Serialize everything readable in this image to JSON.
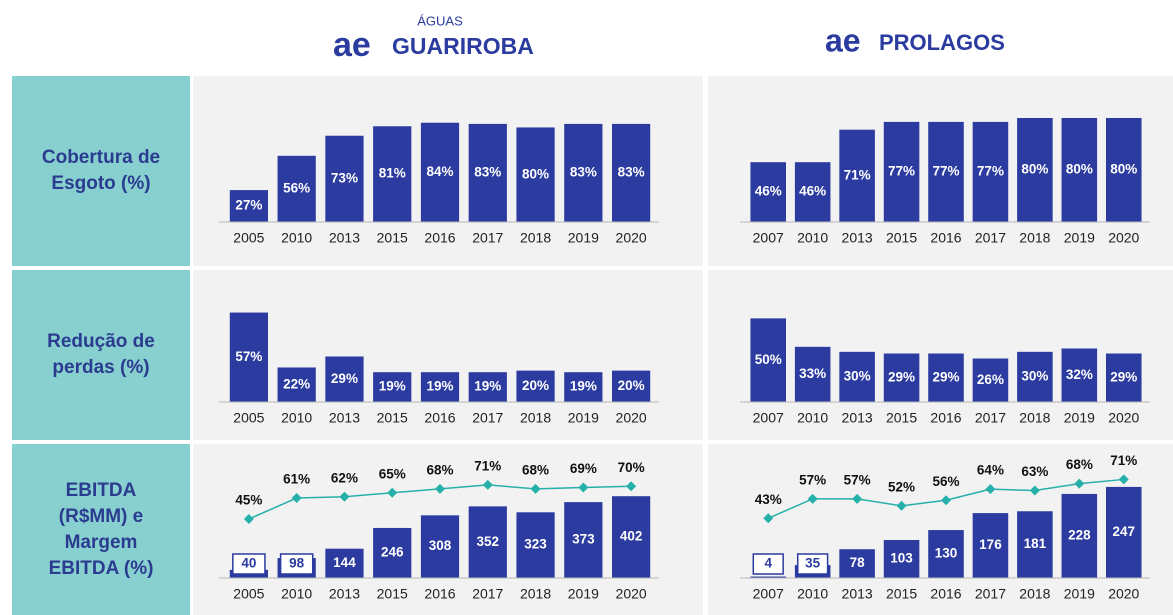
{
  "header": {
    "brands": [
      {
        "sub": "ÁGUAS",
        "logo": "ae",
        "name": "GUARIROBA"
      },
      {
        "logo": "ae",
        "name": "PROLAGOS"
      }
    ]
  },
  "rows": [
    {
      "label": [
        "Cobertura de",
        "Esgoto (%)"
      ]
    },
    {
      "label": [
        "Redução de",
        "perdas (%)"
      ]
    },
    {
      "label": [
        "EBITDA",
        "(R$MM) e",
        "Margem",
        "EBITDA (%)"
      ]
    }
  ],
  "chart_data": [
    {
      "type": "bar",
      "categories": [
        "2005",
        "2010",
        "2013",
        "2015",
        "2016",
        "2017",
        "2018",
        "2019",
        "2020"
      ],
      "values": [
        27,
        56,
        73,
        81,
        84,
        83,
        80,
        83,
        83
      ],
      "value_labels": [
        "27%",
        "56%",
        "73%",
        "81%",
        "84%",
        "83%",
        "80%",
        "83%",
        "83%"
      ],
      "color": "#2b3ba0",
      "ylim": [
        0,
        110
      ]
    },
    {
      "type": "bar",
      "categories": [
        "2007",
        "2010",
        "2013",
        "2015",
        "2016",
        "2017",
        "2018",
        "2019",
        "2020"
      ],
      "values": [
        46,
        46,
        71,
        77,
        77,
        77,
        80,
        80,
        80
      ],
      "value_labels": [
        "46%",
        "46%",
        "71%",
        "77%",
        "77%",
        "77%",
        "80%",
        "80%",
        "80%"
      ],
      "color": "#2b3ba0",
      "ylim": [
        0,
        100
      ]
    },
    {
      "type": "bar",
      "categories": [
        "2005",
        "2010",
        "2013",
        "2015",
        "2016",
        "2017",
        "2018",
        "2019",
        "2020"
      ],
      "values": [
        57,
        22,
        29,
        19,
        19,
        19,
        20,
        19,
        20
      ],
      "value_labels": [
        "57%",
        "22%",
        "29%",
        "19%",
        "19%",
        "19%",
        "20%",
        "19%",
        "20%"
      ],
      "color": "#2b3ba0",
      "ylim": [
        0,
        65
      ]
    },
    {
      "type": "bar",
      "categories": [
        "2007",
        "2010",
        "2013",
        "2015",
        "2016",
        "2017",
        "2018",
        "2019",
        "2020"
      ],
      "values": [
        50,
        33,
        30,
        29,
        29,
        26,
        30,
        32,
        29
      ],
      "value_labels": [
        "50%",
        "33%",
        "30%",
        "29%",
        "29%",
        "26%",
        "30%",
        "32%",
        "29%"
      ],
      "color": "#2b3ba0",
      "ylim": [
        0,
        61
      ]
    },
    {
      "type": "combo",
      "categories": [
        "2005",
        "2010",
        "2013",
        "2015",
        "2016",
        "2017",
        "2018",
        "2019",
        "2020"
      ],
      "series": [
        {
          "type": "bar",
          "color": "#2b3ba0",
          "values": [
            40,
            98,
            144,
            246,
            308,
            352,
            323,
            373,
            402
          ]
        },
        {
          "type": "line",
          "axis": "y2",
          "color": "#26b0aa",
          "values": [
            45,
            61,
            62,
            65,
            68,
            71,
            68,
            69,
            70
          ],
          "value_labels": [
            "45%",
            "61%",
            "62%",
            "65%",
            "68%",
            "71%",
            "68%",
            "69%",
            "70%"
          ]
        }
      ],
      "ylim": [
        0,
        580
      ],
      "y2lim": [
        0,
        90
      ]
    },
    {
      "type": "combo",
      "categories": [
        "2007",
        "2010",
        "2013",
        "2015",
        "2016",
        "2017",
        "2018",
        "2019",
        "2020"
      ],
      "series": [
        {
          "type": "bar",
          "color": "#2b3ba0",
          "values": [
            4,
            35,
            78,
            103,
            130,
            176,
            181,
            228,
            247
          ]
        },
        {
          "type": "line",
          "axis": "y2",
          "color": "#26b0aa",
          "values": [
            43,
            57,
            57,
            52,
            56,
            64,
            63,
            68,
            71
          ],
          "value_labels": [
            "43%",
            "57%",
            "57%",
            "52%",
            "56%",
            "64%",
            "63%",
            "68%",
            "71%"
          ]
        }
      ],
      "ylim": [
        0,
        320
      ],
      "y2lim": [
        0,
        85
      ]
    }
  ]
}
